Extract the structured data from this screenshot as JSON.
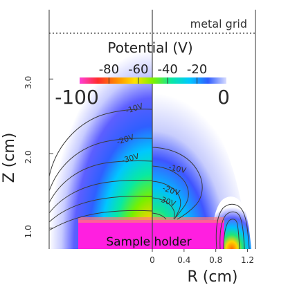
{
  "chart_data": {
    "type": "heatmap",
    "title": "Potential (V)",
    "xlabel": "R (cm)",
    "ylabel": "Z (cm)",
    "x_ticks": [
      0,
      0.4,
      0.8,
      1.2
    ],
    "x_tick_labels": [
      "0",
      "0.4",
      "0.8",
      "1.2"
    ],
    "y_ticks": [
      1.0,
      2.0,
      3.0
    ],
    "y_tick_labels": [
      "1.0",
      "2.0",
      "3.0"
    ],
    "xlim": [
      -1.3,
      1.3
    ],
    "ylim": [
      0.72,
      3.93
    ],
    "colorbar": {
      "range": [
        -100,
        0
      ],
      "tick_values": [
        -80,
        -60,
        -40,
        -20
      ],
      "tick_labels": [
        "-80",
        "-60",
        "-40",
        "-20"
      ],
      "min_label": "-100",
      "max_label": "0",
      "colors": [
        "#ff3fd8",
        "#ff2c2c",
        "#ff8a00",
        "#ffe100",
        "#7df000",
        "#0be7a4",
        "#00c8ff",
        "#2f5dff",
        "#d8dcff"
      ]
    },
    "contour_labels": {
      "left": [
        "-10V",
        "-20V",
        "-30V"
      ],
      "right": [
        "-10V",
        "-20V",
        "-30V"
      ]
    },
    "annotations": {
      "metal_grid": "metal grid",
      "sample_holder": "Sample holder"
    },
    "grid": false
  }
}
